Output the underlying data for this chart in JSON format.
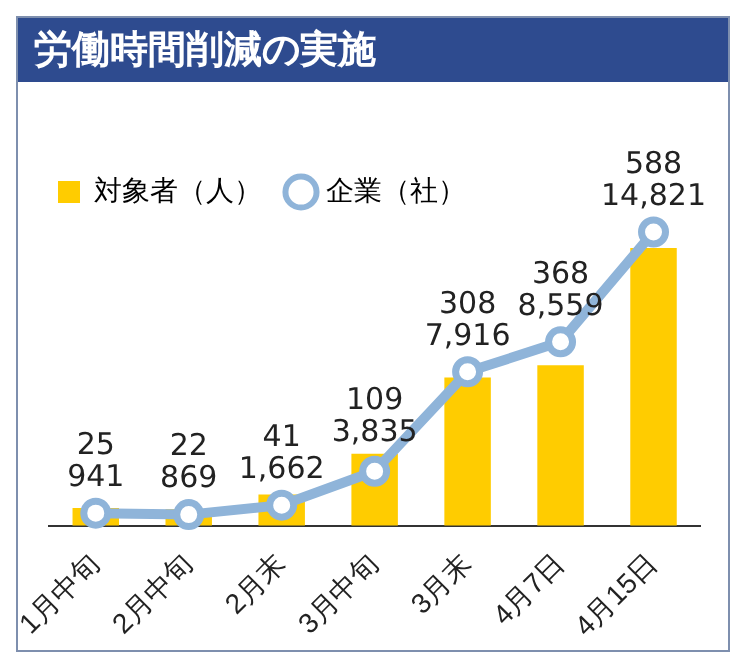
{
  "chart_data": {
    "type": "bar",
    "title": "労働時間削減の実施",
    "categories": [
      "1月中旬",
      "2月中旬",
      "2月末",
      "3月中旬",
      "3月末",
      "4月7日",
      "4月15日"
    ],
    "series": [
      {
        "name": "対象者（人）",
        "color": "#ffcc00",
        "values": [
          941,
          869,
          1662,
          3835,
          7916,
          8559,
          14821
        ],
        "value_labels": [
          "941",
          "869",
          "1,662",
          "3,835",
          "7,916",
          "8,559",
          "14,821"
        ]
      },
      {
        "name": "企業（社）",
        "type": "line",
        "axis": "y2",
        "color": "#8fb4d9",
        "values": [
          25,
          22,
          41,
          109,
          308,
          368,
          588
        ],
        "value_labels": [
          "25",
          "22",
          "41",
          "109",
          "308",
          "368",
          "588"
        ]
      }
    ],
    "tick_labels": "x",
    "legend": "top left",
    "marker": "circle"
  }
}
